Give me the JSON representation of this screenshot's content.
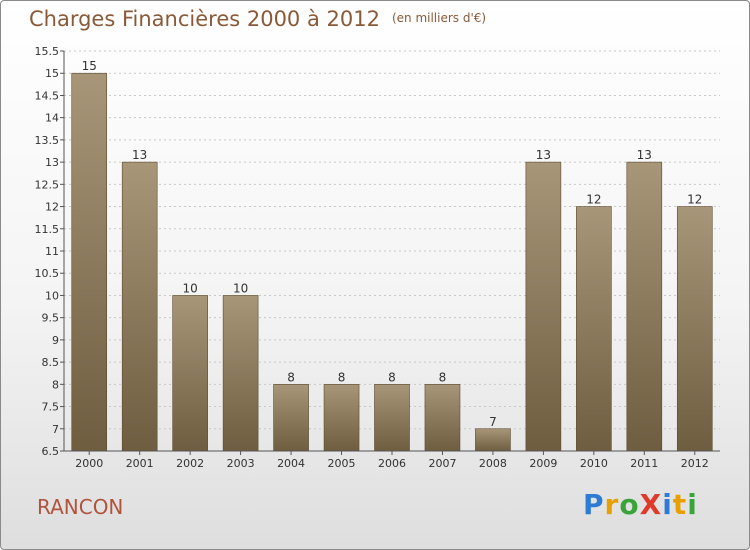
{
  "title": "Charges Financières 2000 à 2012",
  "unit": "(en milliers d'€)",
  "place": "RANCON",
  "logo": "ProXiti",
  "colors": {
    "bar_light": "#a89679",
    "bar_dark": "#6f5d40",
    "title": "#8a5a38",
    "place": "#b0543c"
  },
  "chart_data": {
    "type": "bar",
    "categories": [
      "2000",
      "2001",
      "2002",
      "2003",
      "2004",
      "2005",
      "2006",
      "2007",
      "2008",
      "2009",
      "2010",
      "2011",
      "2012"
    ],
    "values": [
      15,
      13,
      10,
      10,
      8,
      8,
      8,
      8,
      7,
      13,
      12,
      13,
      12
    ],
    "ylim": [
      6.5,
      15.5
    ],
    "yticks": [
      6.5,
      7,
      7.5,
      8,
      8.5,
      9,
      9.5,
      10,
      10.5,
      11,
      11.5,
      12,
      12.5,
      13,
      13.5,
      14,
      14.5,
      15,
      15.5
    ],
    "grid": true,
    "xlabel": "",
    "ylabel": ""
  }
}
